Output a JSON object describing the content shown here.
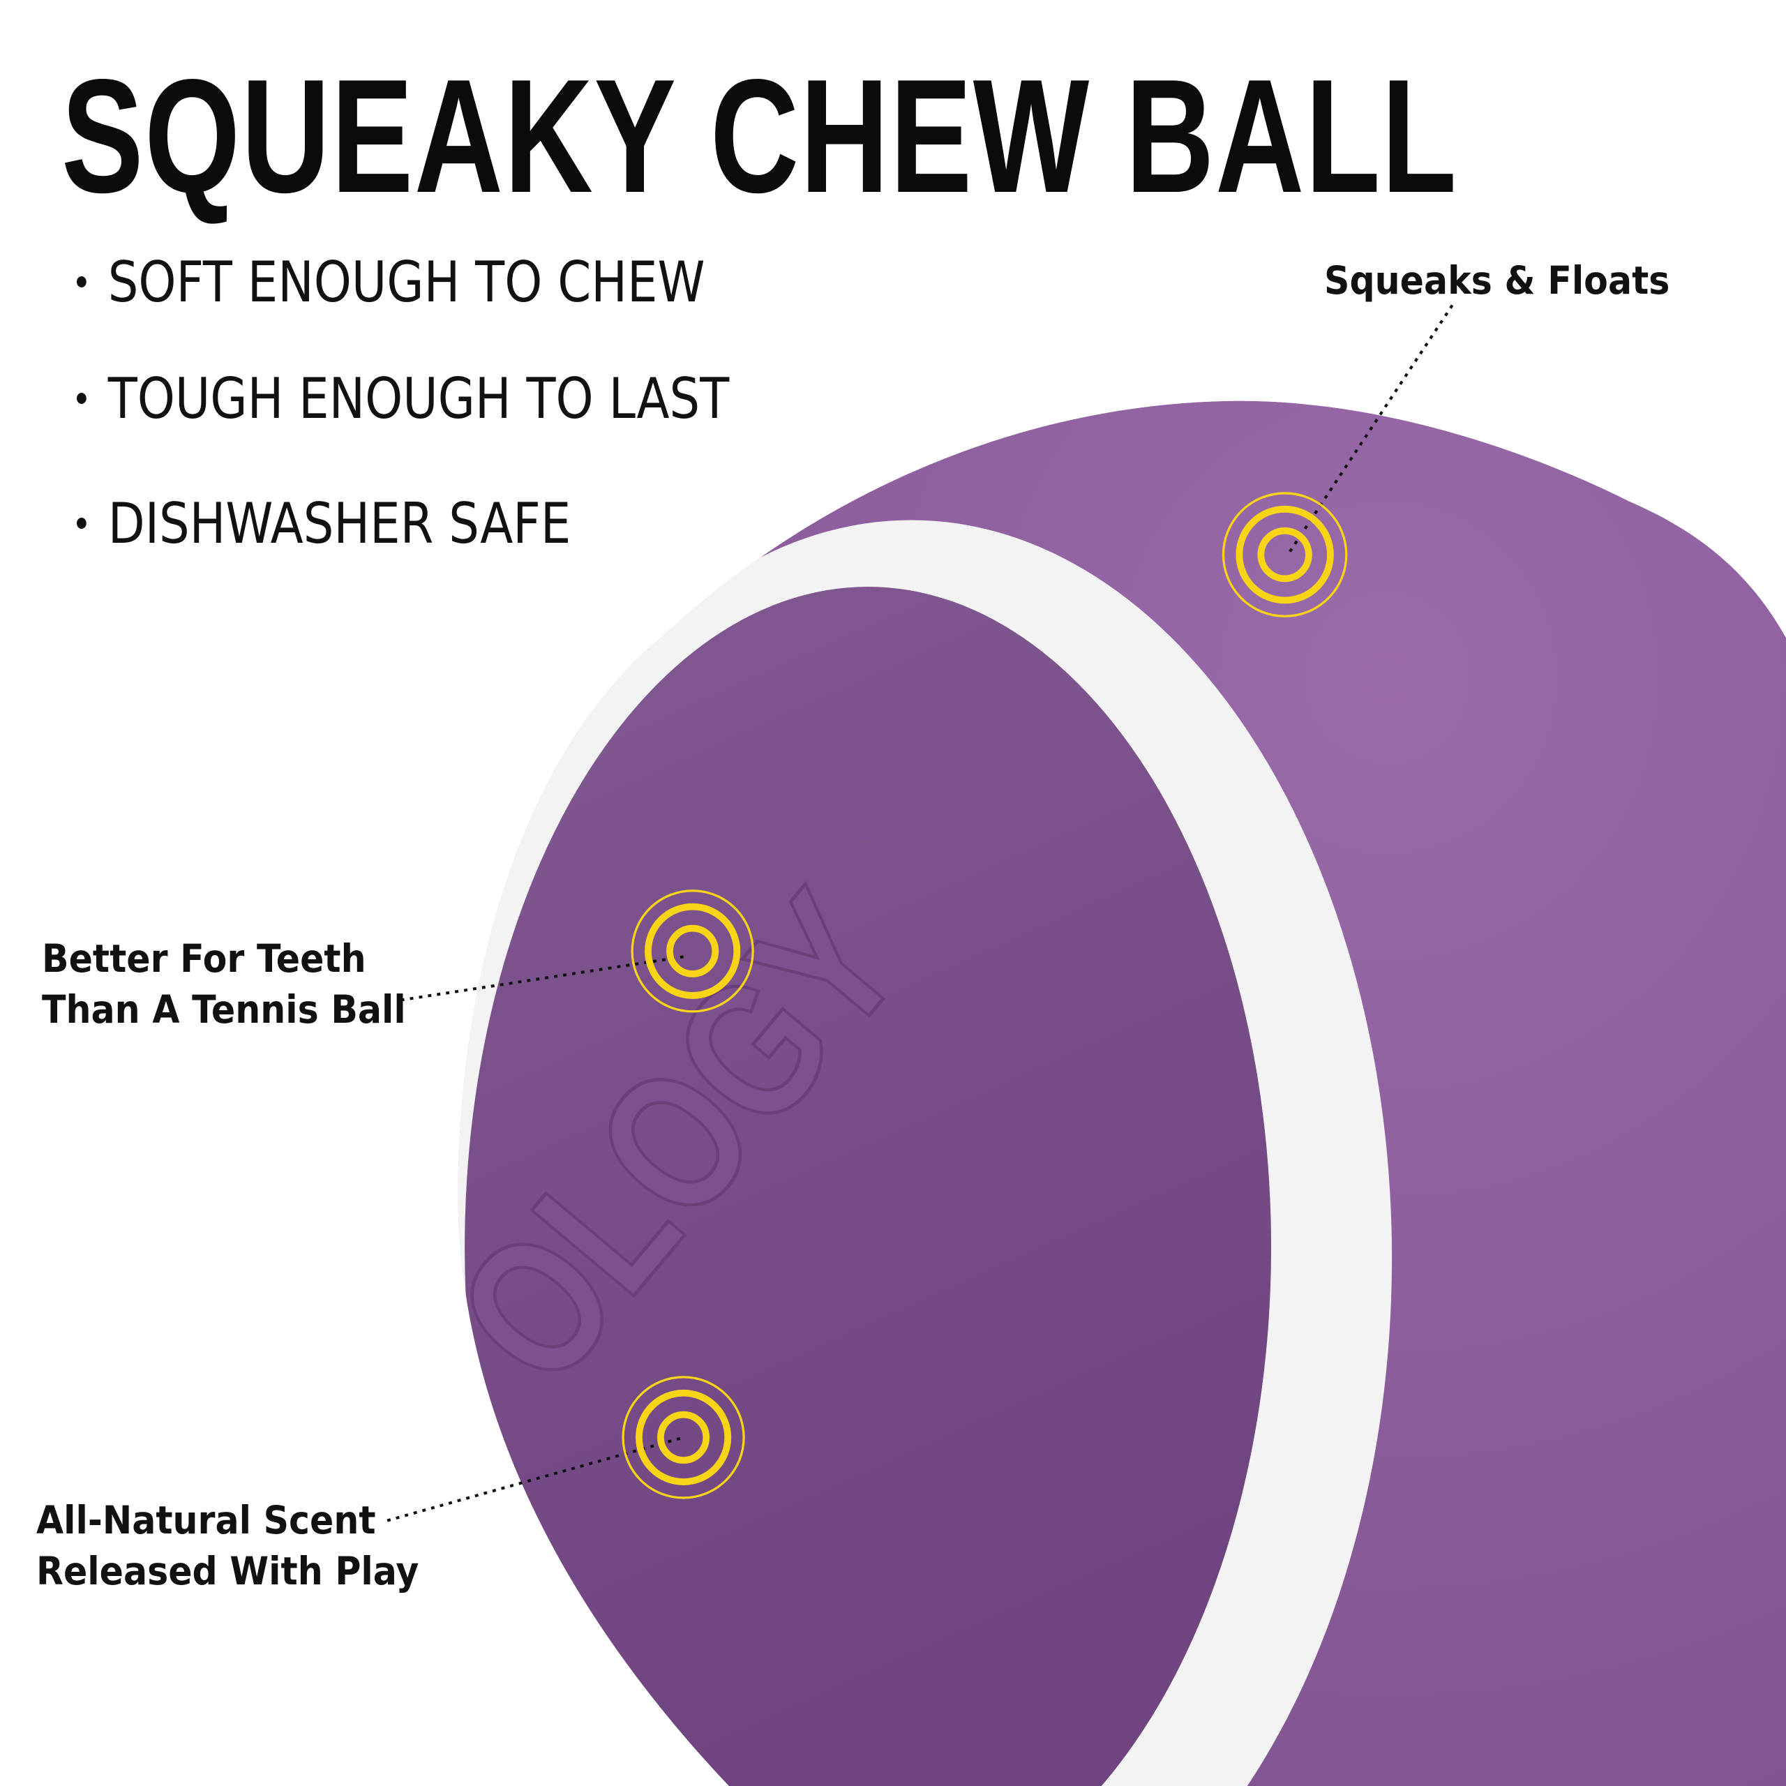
{
  "title": "SQUEAKY CHEW BALL",
  "bullets": [
    "SOFT ENOUGH TO CHEW",
    "TOUGH ENOUGH TO LAST",
    "DISHWASHER SAFE"
  ],
  "callouts": {
    "top_right": "Squeaks & Floats",
    "middle_left": [
      "Better For Teeth",
      "Than A Tennis Ball"
    ],
    "bottom_left": [
      "All-Natural Scent",
      "Released With Play"
    ]
  },
  "logo_text": "OLOGY®",
  "colors": {
    "ball_purple": "#8e61a0",
    "ball_inner_purple": "#744880",
    "seam_white": "#f4f4f4",
    "marker_yellow": "#f7d416",
    "text": "#0b0b0b"
  },
  "icons": [
    "target-ring-icon"
  ]
}
